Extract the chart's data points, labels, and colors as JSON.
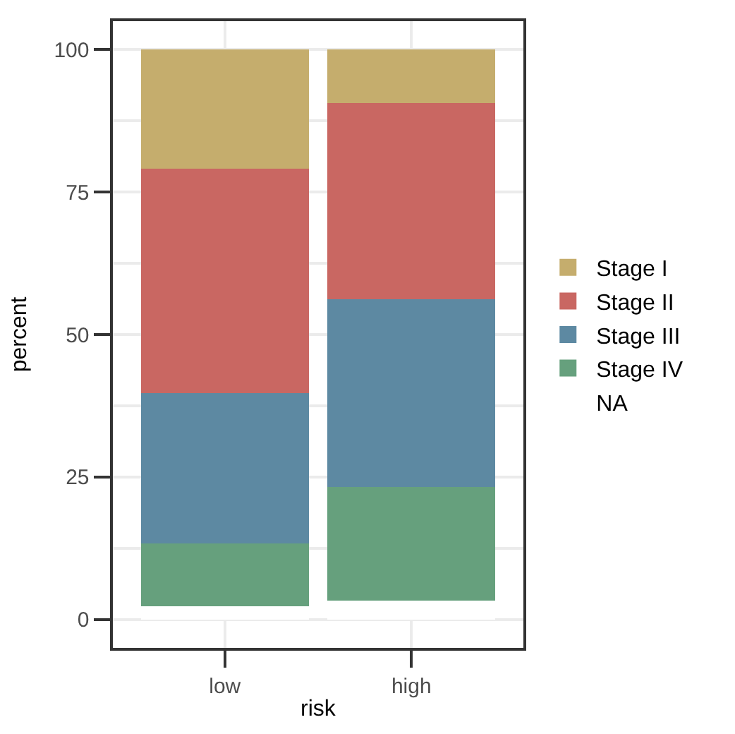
{
  "chart_data": {
    "type": "bar",
    "stacked": true,
    "categories": [
      "low",
      "high"
    ],
    "xlabel": "risk",
    "ylabel": "percent",
    "ylim": [
      -5,
      105
    ],
    "yticks": [
      0,
      25,
      50,
      75,
      100
    ],
    "grid": true,
    "legend": "right",
    "series": [
      {
        "name": "NA",
        "color": "#ffffff",
        "values": [
          2.3,
          3.3
        ]
      },
      {
        "name": "Stage IV",
        "color": "#66a07d",
        "values": [
          11.0,
          20.0
        ]
      },
      {
        "name": "Stage III",
        "color": "#5d89a2",
        "values": [
          26.4,
          32.9
        ]
      },
      {
        "name": "Stage II",
        "color": "#c96762",
        "values": [
          39.4,
          34.4
        ]
      },
      {
        "name": "Stage I",
        "color": "#c5ad6d",
        "values": [
          20.9,
          9.4
        ]
      }
    ]
  }
}
